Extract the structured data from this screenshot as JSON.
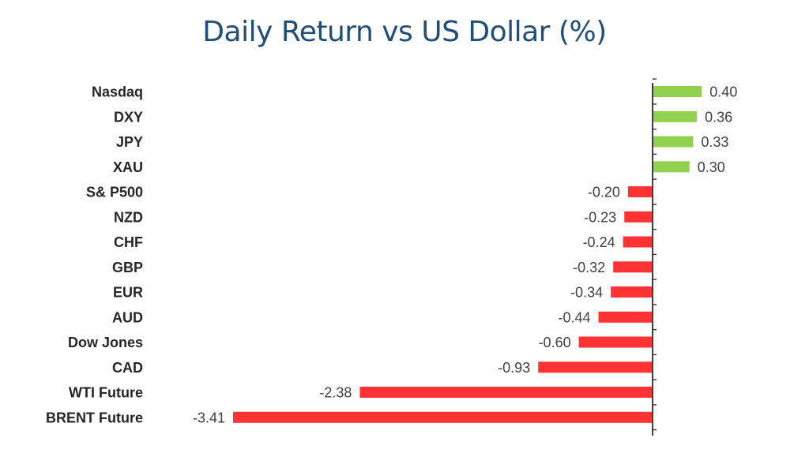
{
  "colors": {
    "positive": "#92d050",
    "negative": "#ff3333",
    "title": "#1f4e79",
    "label": "#262626",
    "value": "#404040",
    "axis": "#404040"
  },
  "chart_data": {
    "type": "bar",
    "orientation": "horizontal",
    "title": "Daily Return vs US Dollar (%)",
    "xlabel": "",
    "ylabel": "",
    "grid": false,
    "legend": "none",
    "categories": [
      "Nasdaq",
      "DXY",
      "JPY",
      "XAU",
      "S& P500",
      "NZD",
      "CHF",
      "GBP",
      "EUR",
      "AUD",
      "Dow Jones",
      "CAD",
      "WTI Future",
      "BRENT Future"
    ],
    "values": [
      0.4,
      0.36,
      0.33,
      0.3,
      -0.2,
      -0.23,
      -0.24,
      -0.32,
      -0.34,
      -0.44,
      -0.6,
      -0.93,
      -2.38,
      -3.41
    ],
    "value_labels": [
      "0.40",
      "0.36",
      "0.33",
      "0.30",
      "-0.20",
      "-0.23",
      "-0.24",
      "-0.32",
      "-0.34",
      "-0.44",
      "-0.60",
      "-0.93",
      "-2.38",
      "-3.41"
    ]
  }
}
